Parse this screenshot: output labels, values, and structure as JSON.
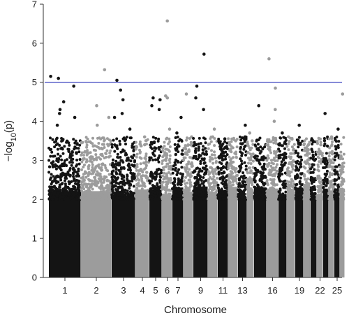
{
  "chart_data": {
    "type": "scatter",
    "subtype": "manhattan",
    "title": "",
    "xlabel": "Chromosome",
    "ylabel_parts": {
      "prefix": "−log",
      "subscript": "10",
      "suffix": "(p)"
    },
    "ylim": [
      0,
      7
    ],
    "y_ticks": [
      "0",
      "1",
      "2",
      "3",
      "4",
      "5",
      "6",
      "7"
    ],
    "x_tick_labels": [
      "1",
      "2",
      "3",
      "4",
      "5",
      "6",
      "7",
      "9",
      "11",
      "13",
      "16",
      "19",
      "22",
      "25"
    ],
    "threshold": 5,
    "colors": {
      "odd": "#141414",
      "even": "#9c9c9c",
      "threshold_line": "#5a5fc8",
      "axis": "#333333"
    },
    "chromosomes": [
      {
        "chr": 1,
        "label": "1",
        "top": [
          4.1,
          4.3,
          4.5,
          4.9,
          5.1,
          5.15,
          3.9,
          4.2
        ]
      },
      {
        "chr": 2,
        "label": "2",
        "top": [
          3.9,
          4.1,
          4.4,
          5.32
        ]
      },
      {
        "chr": 3,
        "label": "3",
        "top": [
          4.2,
          4.55,
          4.8,
          5.05,
          4.1,
          3.8
        ]
      },
      {
        "chr": 4,
        "label": "4",
        "top": [
          3.4,
          3.6
        ]
      },
      {
        "chr": 5,
        "label": "5",
        "top": [
          4.4,
          4.55,
          4.6,
          4.3
        ]
      },
      {
        "chr": 6,
        "label": "6",
        "top": [
          4.6,
          4.65,
          6.57,
          3.8
        ]
      },
      {
        "chr": 7,
        "label": "7",
        "top": [
          3.7,
          4.1
        ]
      },
      {
        "chr": 8,
        "label": "",
        "top": [
          3.6,
          4.7
        ]
      },
      {
        "chr": 9,
        "label": "9",
        "top": [
          4.9,
          5.72,
          4.6,
          4.3
        ]
      },
      {
        "chr": 10,
        "label": "",
        "top": [
          3.6,
          3.8
        ]
      },
      {
        "chr": 11,
        "label": "11",
        "top": [
          3.55
        ]
      },
      {
        "chr": 12,
        "label": "",
        "top": [
          3.4,
          3.5
        ]
      },
      {
        "chr": 13,
        "label": "13",
        "top": [
          3.6,
          3.9
        ]
      },
      {
        "chr": 14,
        "label": "",
        "top": [
          3.5,
          3.7
        ]
      },
      {
        "chr": 15,
        "label": "",
        "top": [
          4.4
        ]
      },
      {
        "chr": 16,
        "label": "16",
        "top": [
          5.6,
          4.85,
          4.3,
          4.0
        ]
      },
      {
        "chr": 17,
        "label": "",
        "top": [
          3.7
        ]
      },
      {
        "chr": 18,
        "label": "",
        "top": [
          3.6
        ]
      },
      {
        "chr": 19,
        "label": "19",
        "top": [
          3.9,
          3.5
        ]
      },
      {
        "chr": 20,
        "label": "",
        "top": [
          3.4
        ]
      },
      {
        "chr": 21,
        "label": "",
        "top": [
          3.0
        ]
      },
      {
        "chr": 22,
        "label": "22",
        "top": [
          3.4
        ]
      },
      {
        "chr": 23,
        "label": "",
        "top": [
          4.2
        ]
      },
      {
        "chr": 24,
        "label": "",
        "top": [
          3.6
        ]
      },
      {
        "chr": 25,
        "label": "25",
        "top": [
          3.8
        ]
      },
      {
        "chr": 26,
        "label": "",
        "top": [
          4.7
        ]
      }
    ]
  }
}
